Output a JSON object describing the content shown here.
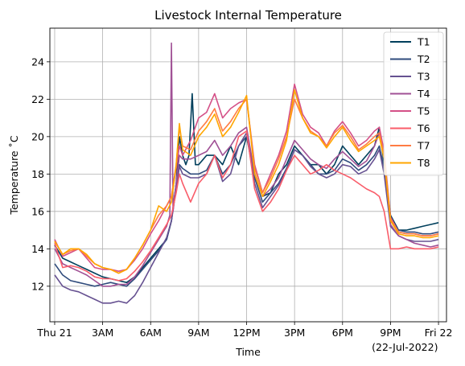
{
  "chart_data": {
    "type": "line",
    "title": "Livestock Internal Temperature",
    "xlabel": "Time",
    "ylabel": "Temperature ˚C",
    "xlim": [
      -0.3,
      24.5
    ],
    "ylim": [
      10.1,
      25.8
    ],
    "grid": true,
    "legend_position": "upper-right",
    "x_ticks": [
      {
        "value": 0,
        "label": "Thu 21"
      },
      {
        "value": 3,
        "label": "3AM"
      },
      {
        "value": 6,
        "label": "6AM"
      },
      {
        "value": 9,
        "label": "9AM"
      },
      {
        "value": 12,
        "label": "12PM"
      },
      {
        "value": 15,
        "label": "3PM"
      },
      {
        "value": 18,
        "label": "6PM"
      },
      {
        "value": 21,
        "label": "9PM"
      },
      {
        "value": 24,
        "label": "Fri 22"
      }
    ],
    "x_sublabel": {
      "value": 21.9,
      "label": "(22-Jul-2022)"
    },
    "y_ticks": [
      12,
      14,
      16,
      18,
      20,
      22,
      24
    ],
    "series": [
      {
        "name": "T1",
        "color": "#003f5c",
        "x": [
          0,
          0.5,
          1,
          1.5,
          2,
          2.5,
          3,
          3.5,
          4,
          4.5,
          5,
          5.5,
          6,
          6.5,
          7,
          7.3,
          7.6,
          7.8,
          8,
          8.2,
          8.4,
          8.6,
          8.8,
          9,
          9.5,
          10,
          10.5,
          11,
          11.5,
          12,
          12.5,
          13,
          13.5,
          14,
          14.5,
          15,
          15.5,
          16,
          16.5,
          17,
          17.5,
          18,
          18.5,
          19,
          19.5,
          20,
          20.3,
          20.6,
          21,
          21.5,
          22,
          22.5,
          23,
          23.5,
          24
        ],
        "y": [
          14.2,
          13.5,
          13.3,
          13.1,
          12.9,
          12.7,
          12.5,
          12.4,
          12.3,
          12.2,
          12.5,
          13.0,
          13.5,
          14.0,
          14.5,
          15.5,
          17.5,
          20.0,
          19.0,
          18.5,
          19.0,
          22.3,
          18.5,
          18.5,
          19.0,
          19.0,
          18.5,
          19.5,
          18.5,
          20.0,
          18.0,
          16.8,
          17.0,
          18.0,
          18.5,
          19.5,
          19.0,
          18.5,
          18.5,
          18.0,
          18.5,
          19.5,
          19.0,
          18.5,
          19.0,
          19.5,
          20.5,
          18.5,
          15.8,
          15.0,
          15.0,
          15.1,
          15.2,
          15.3,
          15.4
        ]
      },
      {
        "name": "T2",
        "color": "#2f4b7c",
        "x": [
          0,
          0.5,
          1,
          1.5,
          2,
          2.5,
          3,
          3.5,
          4,
          4.5,
          5,
          5.5,
          6,
          6.5,
          7,
          7.3,
          7.6,
          7.8,
          8,
          8.5,
          9,
          9.5,
          10,
          10.5,
          11,
          11.5,
          12,
          12.5,
          13,
          13.5,
          14,
          14.5,
          15,
          15.5,
          16,
          16.5,
          17,
          17.5,
          18,
          18.5,
          19,
          19.5,
          20,
          20.3,
          20.6,
          21,
          21.5,
          22,
          22.5,
          23,
          23.5,
          24
        ],
        "y": [
          13.2,
          12.6,
          12.3,
          12.2,
          12.1,
          12.0,
          12.1,
          12.2,
          12.1,
          12.0,
          12.4,
          12.9,
          13.4,
          13.9,
          14.5,
          15.5,
          17.5,
          18.5,
          18.3,
          18.0,
          18.0,
          18.2,
          19.0,
          18.0,
          18.5,
          19.5,
          20.0,
          17.8,
          16.5,
          17.0,
          17.5,
          18.3,
          19.3,
          19.0,
          18.5,
          18.0,
          18.0,
          18.2,
          18.8,
          18.6,
          18.2,
          18.5,
          19.0,
          19.5,
          18.3,
          15.5,
          15.0,
          14.9,
          14.9,
          14.8,
          14.8,
          14.9
        ]
      },
      {
        "name": "T3",
        "color": "#665191",
        "x": [
          0,
          0.5,
          1,
          1.5,
          2,
          2.5,
          3,
          3.5,
          4,
          4.5,
          5,
          5.5,
          6,
          6.5,
          7,
          7.3,
          7.6,
          7.8,
          8,
          8.5,
          9,
          9.5,
          10,
          10.5,
          11,
          11.5,
          12,
          12.5,
          13,
          13.5,
          14,
          14.5,
          15,
          15.5,
          16,
          16.5,
          17,
          17.5,
          18,
          18.5,
          19,
          19.5,
          20,
          20.3,
          20.6,
          21,
          21.5,
          22,
          22.5,
          23,
          23.5,
          24
        ],
        "y": [
          12.6,
          12.0,
          11.8,
          11.7,
          11.5,
          11.3,
          11.1,
          11.1,
          11.2,
          11.1,
          11.5,
          12.2,
          13.0,
          13.8,
          14.6,
          15.5,
          17.2,
          18.4,
          18.0,
          17.8,
          17.8,
          18.0,
          19.0,
          17.6,
          18.0,
          19.5,
          20.2,
          17.5,
          16.2,
          16.8,
          17.4,
          18.2,
          19.3,
          19.0,
          18.4,
          18.0,
          17.8,
          18.0,
          18.5,
          18.4,
          18.0,
          18.2,
          18.8,
          19.3,
          18.0,
          15.2,
          14.7,
          14.5,
          14.4,
          14.4,
          14.4,
          14.5
        ]
      },
      {
        "name": "T4",
        "color": "#a05195",
        "x": [
          0,
          0.5,
          1,
          1.5,
          2,
          2.5,
          3,
          3.5,
          4,
          4.5,
          5,
          5.5,
          6,
          6.5,
          7,
          7.2,
          7.3,
          7.4,
          7.6,
          7.8,
          8,
          8.5,
          9,
          9.5,
          10,
          10.5,
          11,
          11.5,
          12,
          12.5,
          13,
          13.5,
          14,
          14.5,
          15,
          15.5,
          16,
          16.5,
          17,
          17.5,
          18,
          18.5,
          19,
          19.5,
          20,
          20.3,
          20.6,
          21,
          21.5,
          22,
          22.5,
          23,
          23.5,
          24
        ],
        "y": [
          14.0,
          13.2,
          13.0,
          12.8,
          12.6,
          12.3,
          12.0,
          12.0,
          12.1,
          12.1,
          12.5,
          13.1,
          13.8,
          14.5,
          15.2,
          15.8,
          25.0,
          16.0,
          17.5,
          19.0,
          18.8,
          18.8,
          19.0,
          19.2,
          19.8,
          19.0,
          19.5,
          20.2,
          20.5,
          18.0,
          16.8,
          17.2,
          17.8,
          18.8,
          19.8,
          19.3,
          18.8,
          18.5,
          18.3,
          18.8,
          19.2,
          18.8,
          18.4,
          18.7,
          19.5,
          20.2,
          18.8,
          15.3,
          14.7,
          14.5,
          14.3,
          14.2,
          14.1,
          14.2
        ]
      },
      {
        "name": "T5",
        "color": "#d45087",
        "x": [
          0,
          0.5,
          1,
          1.5,
          2,
          2.5,
          3,
          3.5,
          4,
          4.5,
          5,
          5.5,
          6,
          6.5,
          7,
          7.3,
          7.6,
          7.8,
          8,
          8.5,
          9,
          9.5,
          10,
          10.5,
          11,
          11.5,
          12,
          12.5,
          13,
          13.5,
          14,
          14.5,
          15,
          15.5,
          16,
          16.5,
          17,
          17.5,
          18,
          18.5,
          19,
          19.5,
          20,
          20.3,
          20.6,
          21,
          21.5,
          22,
          22.5,
          23,
          23.5,
          24
        ],
        "y": [
          14.5,
          13.6,
          13.8,
          14.0,
          13.5,
          13.0,
          12.9,
          12.9,
          12.8,
          12.9,
          13.4,
          14.0,
          14.8,
          15.5,
          16.3,
          16.8,
          18.3,
          19.5,
          19.0,
          19.8,
          21.0,
          21.3,
          22.3,
          21.0,
          21.5,
          21.8,
          22.0,
          18.5,
          17.0,
          18.0,
          19.0,
          20.3,
          22.8,
          21.2,
          20.5,
          20.2,
          19.5,
          20.3,
          20.8,
          20.2,
          19.5,
          19.8,
          20.3,
          20.5,
          19.2,
          15.7,
          14.9,
          14.8,
          14.8,
          14.7,
          14.7,
          14.8
        ]
      },
      {
        "name": "T6",
        "color": "#f95d6a",
        "x": [
          0,
          0.5,
          1,
          1.5,
          2,
          2.5,
          3,
          3.5,
          4,
          4.5,
          5,
          5.5,
          6,
          6.5,
          7,
          7.3,
          7.6,
          7.8,
          8,
          8.5,
          9,
          9.5,
          10,
          10.5,
          11,
          11.5,
          12,
          12.5,
          13,
          13.5,
          14,
          14.5,
          15,
          15.5,
          16,
          16.5,
          17,
          17.5,
          18,
          18.5,
          19,
          19.5,
          20,
          20.3,
          20.6,
          21,
          21.5,
          22,
          22.5,
          23,
          23.5,
          24
        ],
        "y": [
          14.3,
          13.0,
          13.1,
          13.0,
          12.8,
          12.5,
          12.4,
          12.4,
          12.3,
          12.4,
          12.8,
          13.3,
          13.9,
          14.6,
          15.3,
          15.8,
          17.0,
          18.0,
          17.5,
          16.5,
          17.5,
          18.0,
          19.0,
          17.8,
          18.5,
          20.0,
          20.3,
          17.2,
          16.0,
          16.5,
          17.2,
          18.2,
          19.0,
          18.5,
          18.0,
          18.2,
          18.5,
          18.2,
          18.0,
          17.8,
          17.5,
          17.2,
          17.0,
          16.8,
          16.0,
          14.0,
          14.0,
          14.1,
          14.0,
          14.0,
          14.0,
          14.1
        ]
      },
      {
        "name": "T7",
        "color": "#ff7c43",
        "x": [
          0,
          0.5,
          1,
          1.5,
          2,
          2.5,
          3,
          3.5,
          4,
          4.5,
          5,
          5.5,
          6,
          6.5,
          7,
          7.3,
          7.6,
          7.8,
          8,
          8.5,
          9,
          9.5,
          10,
          10.5,
          11,
          11.5,
          12,
          12.5,
          13,
          13.5,
          14,
          14.5,
          15,
          15.5,
          16,
          16.5,
          17,
          17.5,
          18,
          18.5,
          19,
          19.5,
          20,
          20.3,
          20.6,
          21,
          21.5,
          22,
          22.5,
          23,
          23.5,
          24
        ],
        "y": [
          14.4,
          13.7,
          13.9,
          14.0,
          13.6,
          13.2,
          13.0,
          12.9,
          12.7,
          12.9,
          13.5,
          14.2,
          15.0,
          15.8,
          16.3,
          16.8,
          18.5,
          20.5,
          19.5,
          19.3,
          20.3,
          20.8,
          21.5,
          20.3,
          20.8,
          21.5,
          22.0,
          18.3,
          17.0,
          17.8,
          18.8,
          20.0,
          22.0,
          21.0,
          20.3,
          20.0,
          19.5,
          20.2,
          20.6,
          20.0,
          19.3,
          19.6,
          20.0,
          20.2,
          19.0,
          15.6,
          14.9,
          14.8,
          14.8,
          14.7,
          14.7,
          14.8
        ]
      },
      {
        "name": "T8",
        "color": "#ffa600",
        "x": [
          0,
          0.5,
          1,
          1.5,
          2,
          2.5,
          3,
          3.5,
          4,
          4.5,
          5,
          5.5,
          6,
          6.5,
          7,
          7.3,
          7.6,
          7.8,
          8,
          8.5,
          9,
          9.5,
          10,
          10.5,
          11,
          11.5,
          12,
          12.5,
          13,
          13.5,
          14,
          14.5,
          15,
          15.5,
          16,
          16.5,
          17,
          17.5,
          18,
          18.5,
          19,
          19.5,
          20,
          20.3,
          20.6,
          21,
          21.5,
          22,
          22.5,
          23,
          23.5,
          24
        ],
        "y": [
          14.4,
          13.7,
          14.0,
          14.0,
          13.7,
          13.2,
          13.0,
          12.9,
          12.7,
          12.9,
          13.5,
          14.2,
          15.0,
          16.3,
          16.0,
          16.5,
          18.5,
          20.7,
          19.3,
          19.0,
          20.0,
          20.5,
          21.2,
          20.0,
          20.5,
          21.3,
          22.2,
          18.0,
          16.8,
          17.6,
          18.5,
          19.8,
          22.5,
          21.0,
          20.2,
          20.0,
          19.4,
          20.0,
          20.5,
          19.8,
          19.2,
          19.5,
          19.8,
          20.0,
          18.8,
          15.5,
          14.8,
          14.7,
          14.7,
          14.6,
          14.6,
          14.7
        ]
      }
    ]
  }
}
